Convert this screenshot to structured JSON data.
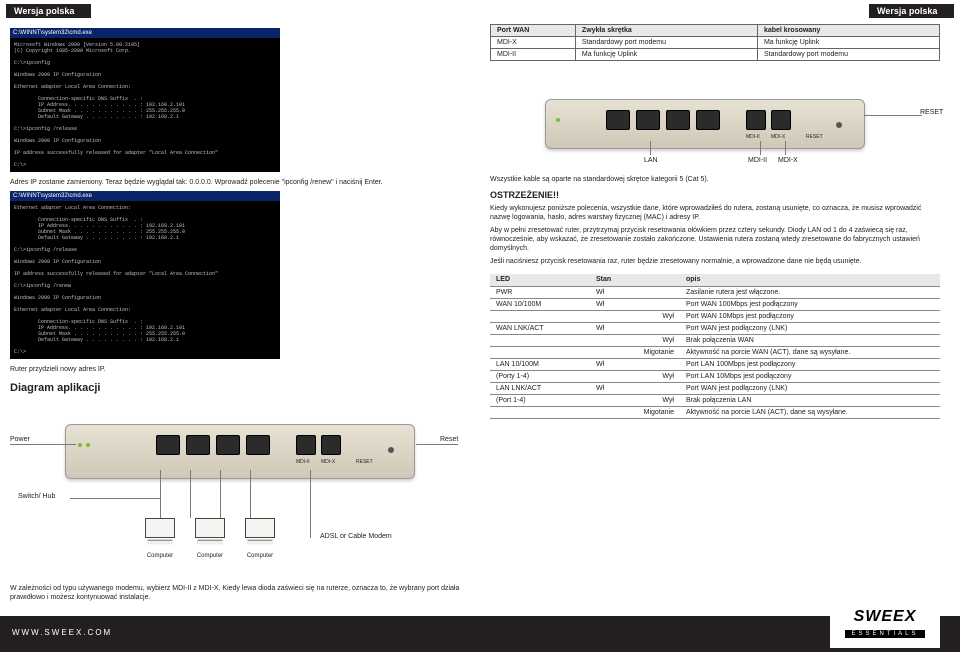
{
  "header": {
    "left": "Wersja polska",
    "right": "Wersja polska"
  },
  "left": {
    "ip_changed": "Adres IP zostanie zamieniony. Teraz będzie wyglądał tak: 0.0.0.0. Wprowadź polecenie \"ipconfig /renew\" i naciśnij Enter.",
    "router_new_ip": "Ruter przydzieli nowy adres IP.",
    "diagram_title": "Diagram aplikacji",
    "diagram": {
      "power": "Power",
      "reset": "Reset",
      "switch_hub": "Switch/ Hub",
      "modem": "ADSL or Cable Modem",
      "computer": "Computer"
    },
    "note_bottom": "W zależności od typu używanego modemu, wybierz MDI-II z MDI-X. Kiedy lewa dioda zaświeci się na ruterze, oznacza to, że wybrany port działa prawidłowo i możesz kontynuować instalacje.",
    "cmd1": "Microsoft Windows 2000 [Version 5.00.2195]\n(C) Copyright 1985-2000 Microsoft Corp.\n\nC:\\>ipconfig\n\nWindows 2000 IP Configuration\n\nEthernet adapter Local Area Connection:\n\n        Connection-specific DNS Suffix  . :\n        IP Address. . . . . . . . . . . . : 192.168.2.101\n        Subnet Mask . . . . . . . . . . . : 255.255.255.0\n        Default Gateway . . . . . . . . . : 192.168.2.1\n\nC:\\>ipconfig /release\n\nWindows 2000 IP Configuration\n\nIP address successfully released for adapter \"Local Area Connection\"\n\nC:\\>",
    "cmd2": "Ethernet adapter Local Area Connection:\n\n        Connection-specific DNS Suffix  . :\n        IP Address. . . . . . . . . . . . : 192.168.2.101\n        Subnet Mask . . . . . . . . . . . : 255.255.255.0\n        Default Gateway . . . . . . . . . : 192.168.2.1\n\nC:\\>ipconfig /release\n\nWindows 2000 IP Configuration\n\nIP address successfully released for adapter \"Local Area Connection\"\n\nC:\\>ipconfig /renew\n\nWindows 2000 IP Configuration\n\nEthernet adapter Local Area Connection:\n\n        Connection-specific DNS Suffix  . :\n        IP Address. . . . . . . . . . . . : 192.168.2.101\n        Subnet Mask . . . . . . . . . . . : 255.255.255.0\n        Default Gateway . . . . . . . . . : 192.168.2.1\n\nC:\\>"
  },
  "right": {
    "cable_table": {
      "headers": [
        "Port WAN",
        "Zwykła skrętka",
        "kabel krosowany"
      ],
      "rows": [
        [
          "MDI-X",
          "Standardowy port modemu",
          "Ma funkcję Uplink"
        ],
        [
          "MDI-II",
          "Ma funkcję Uplink",
          "Standardowy port modemu"
        ]
      ]
    },
    "router_labels": {
      "reset": "RESET",
      "lan": "LAN",
      "mdi2": "MDI-II",
      "mdix": "MDI-X"
    },
    "cables_note": "Wszystkie kable są oparte na standardowej skrętce kategorii 5 (Cat 5).",
    "warning_title": "OSTRZEŻENIE!!",
    "warning_p1": "Kiedy wykonujesz poniższe polecenia, wszystkie dane, które wprowadziłeś do rutera, zostaną usunięte, co oznacza, że musisz wprowadzić nazwę logowania, hasło, adres warstwy fizycznej (MAC) i adresy IP.",
    "warning_p2": "Aby w pełni zresetować ruter, przytrzymaj przycisk resetowania ołówkiem przez cztery sekundy. Diody LAN od 1 do 4 zaświecą się raz, równocześnie, aby wskazać, że zresetowanie zostało zakończone. Ustawienia rutera zostaną wtedy zresetowane do fabrycznych ustawień domyślnych.",
    "warning_p3": "Jeśli naciśniesz przycisk resetowania raz, ruter będzie zresetowany normalnie, a wprowadzone dane nie będą usunięte.",
    "led_table": {
      "headers": [
        "LED",
        "Stan",
        "opis"
      ],
      "rows": [
        [
          "PWR",
          "Wł",
          "Zasilanie rutera jest włączone."
        ],
        [
          "WAN 10/100M",
          "Wł",
          "Port WAN 100Mbps jest podłączony"
        ],
        [
          "",
          "Wył",
          "Port WAN 10Mbps jest podłączony"
        ],
        [
          "WAN LNK/ACT",
          "Wł",
          "Port WAN jest podłączony (LNK)"
        ],
        [
          "",
          "Wył",
          "Brak połączenia WAN"
        ],
        [
          "",
          "Migotanie",
          "Aktywność na porcie WAN (ACT), dane są wysyłane."
        ],
        [
          "LAN 10/100M",
          "Wł",
          "Port LAN 100Mbps jest podłączony"
        ],
        [
          "(Porty 1-4)",
          "Wył",
          "Port LAN 10Mbps jest podłączony"
        ],
        [
          "LAN LNK/ACT",
          "Wł",
          "Port WAN jest podłączony (LNK)"
        ],
        [
          "(Port 1-4)",
          "Wył",
          "Brak połączenia LAN"
        ],
        [
          "",
          "Migotanie",
          "Aktywność na porcie LAN (ACT), dane są wysyłane."
        ]
      ]
    }
  },
  "footer": {
    "url": "WWW.SWEEX.COM",
    "brand": "SWEEX",
    "essentials": "ESSENTIALS"
  },
  "style": {
    "header_bg": "#231f20",
    "header_fg": "#ffffff",
    "router_bg_top": "#e8e2d4",
    "router_bg_bot": "#cfc8b8",
    "led_green": "#7fba3a",
    "port_dark": "#2b2b2b"
  }
}
